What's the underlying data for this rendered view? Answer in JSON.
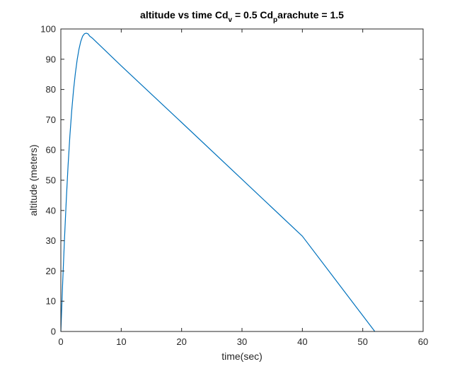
{
  "chart_data": {
    "type": "line",
    "title": {
      "segments": [
        {
          "text": "altitude vs time Cd",
          "sub": false
        },
        {
          "text": "v",
          "sub": true
        },
        {
          "text": " = 0.5 Cd",
          "sub": false
        },
        {
          "text": "p",
          "sub": true
        },
        {
          "text": "arachute = 1.5",
          "sub": false
        }
      ]
    },
    "xlabel": "time(sec)",
    "ylabel": "altitude (meters)",
    "xlim": [
      0,
      60
    ],
    "ylim": [
      0,
      100
    ],
    "xticks": [
      0,
      10,
      20,
      30,
      40,
      50,
      60
    ],
    "yticks": [
      0,
      10,
      20,
      30,
      40,
      50,
      60,
      70,
      80,
      90,
      100
    ],
    "grid": false,
    "box": true,
    "series": [
      {
        "color": "#0072bd",
        "x": [
          0,
          0.3,
          0.6,
          0.9,
          1.2,
          1.5,
          1.8,
          2.1,
          2.4,
          2.7,
          3.0,
          3.3,
          3.6,
          3.9,
          4.2,
          4.5,
          4.8,
          5.2,
          10,
          20,
          30,
          40,
          52
        ],
        "y": [
          0,
          16.0,
          30.5,
          43.5,
          55.0,
          64.8,
          73.0,
          79.8,
          85.3,
          89.8,
          93.3,
          95.9,
          97.6,
          98.4,
          98.6,
          98.4,
          97.6,
          97.0,
          87.8,
          69.1,
          50.3,
          31.5,
          0
        ]
      }
    ]
  }
}
